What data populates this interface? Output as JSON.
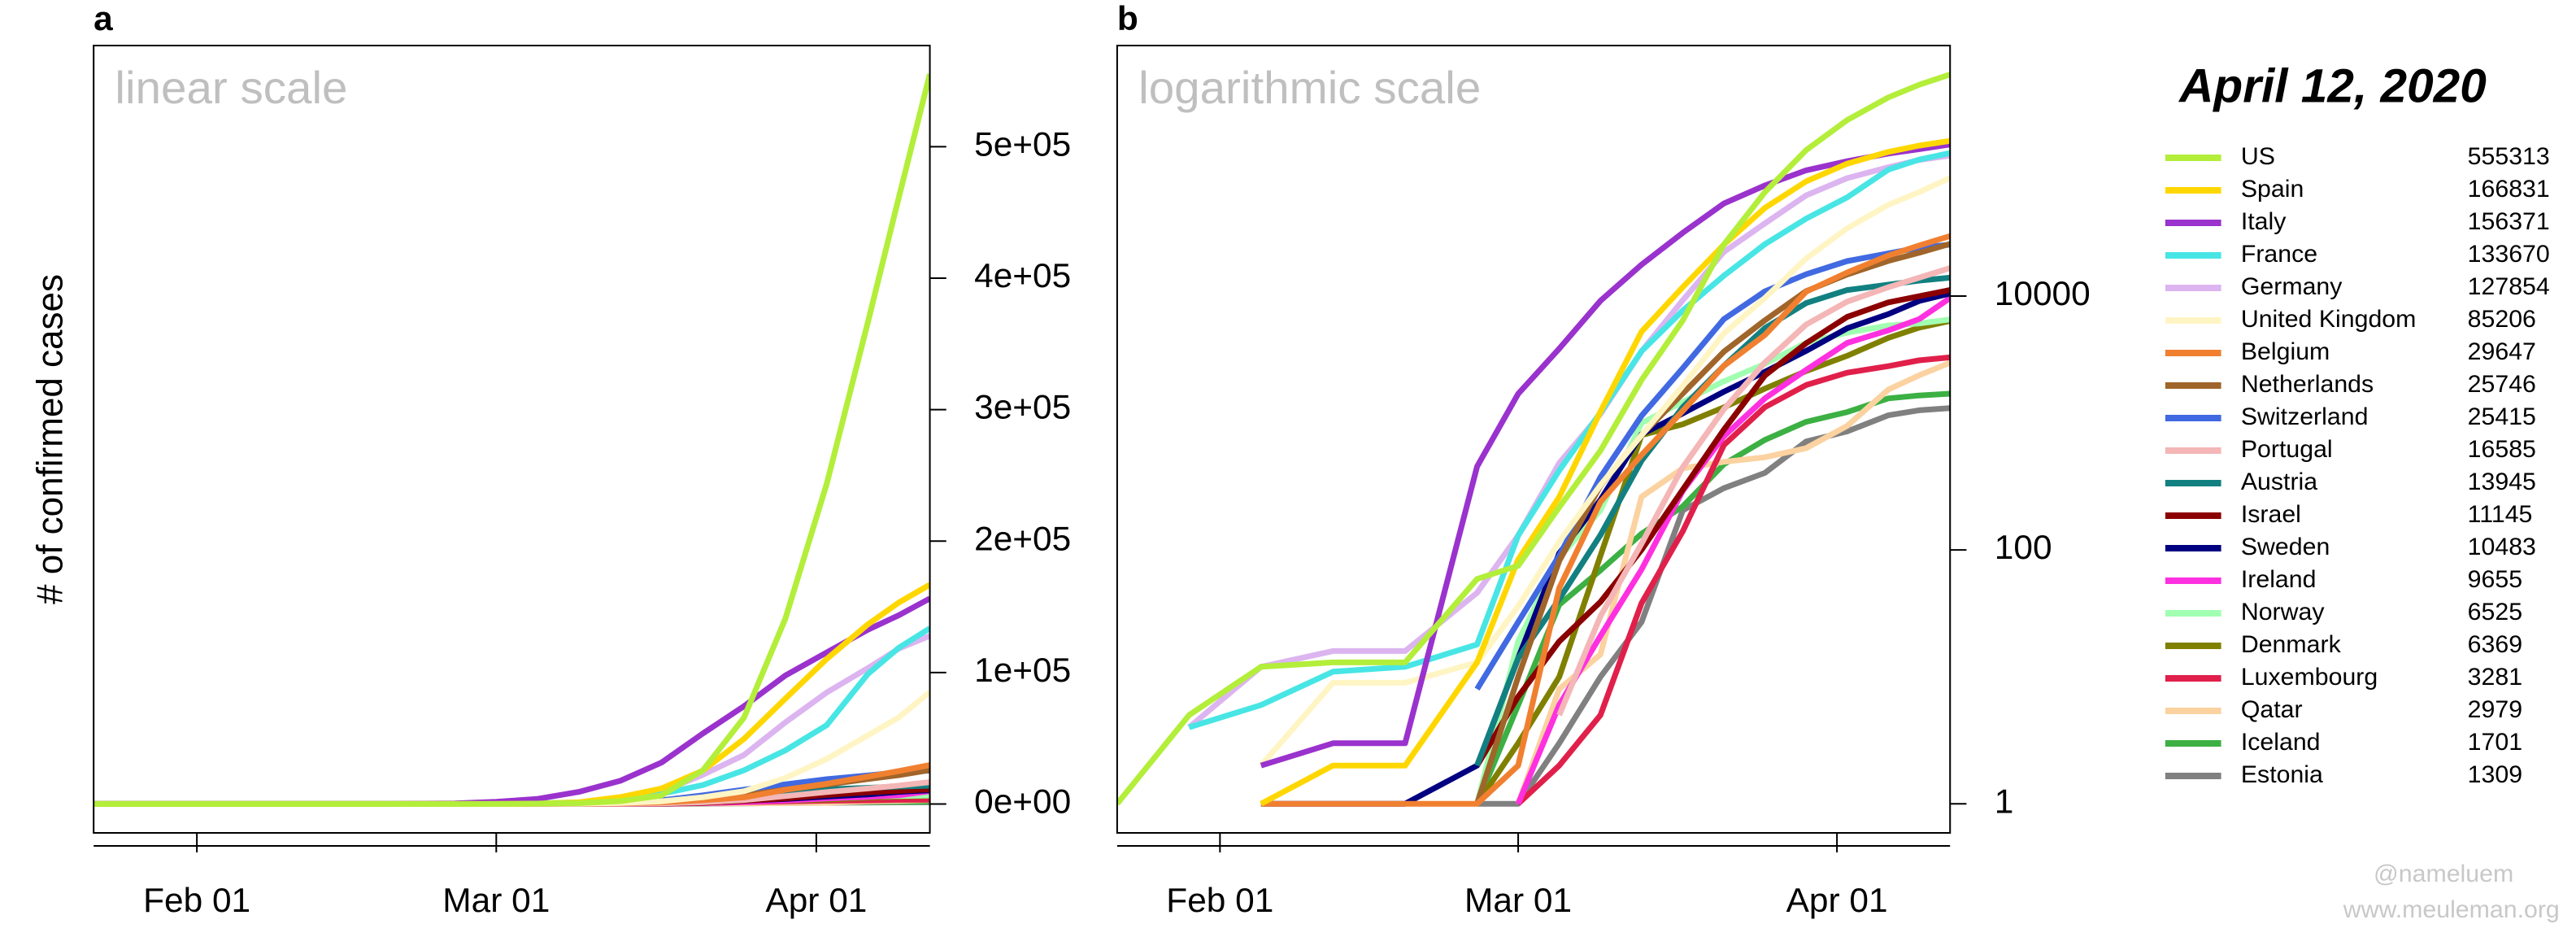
{
  "chart_data": {
    "type": "line",
    "title": "April 12, 2020",
    "ylabel": "# of confirmed cases",
    "x": [
      "Jan 22",
      "Jan 29",
      "Feb 05",
      "Feb 12",
      "Feb 19",
      "Feb 26",
      "Mar 01",
      "Mar 05",
      "Mar 09",
      "Mar 13",
      "Mar 17",
      "Mar 21",
      "Mar 25",
      "Mar 29",
      "Apr 02",
      "Apr 06",
      "Apr 09",
      "Apr 12"
    ],
    "xlim": [
      "Jan 22",
      "Apr 12"
    ],
    "xticks": [
      "Feb 01",
      "Mar 01",
      "Apr 01"
    ],
    "panels": [
      {
        "label": "a",
        "note": "linear scale",
        "yscale": "linear",
        "ylim": [
          -22000,
          577000
        ],
        "yticks": [
          {
            "value": 0,
            "label": "0e+00"
          },
          {
            "value": 100000,
            "label": "1e+05"
          },
          {
            "value": 200000,
            "label": "2e+05"
          },
          {
            "value": 300000,
            "label": "3e+05"
          },
          {
            "value": 400000,
            "label": "4e+05"
          },
          {
            "value": 500000,
            "label": "5e+05"
          }
        ]
      },
      {
        "label": "b",
        "note": "logarithmic scale",
        "yscale": "log",
        "ylim": [
          0.59,
          940000
        ],
        "yticks": [
          1,
          100,
          10000
        ]
      }
    ],
    "series": [
      {
        "name": "US",
        "color": "#b3ee3a",
        "values": [
          1,
          5,
          12,
          13,
          13,
          59,
          75,
          217,
          605,
          2179,
          6421,
          25489,
          65778,
          140886,
          243453,
          366667,
          461437,
          555313
        ]
      },
      {
        "name": "Spain",
        "color": "#ffd700",
        "values": [
          0,
          0,
          1,
          2,
          2,
          13,
          84,
          261,
          1231,
          5232,
          11748,
          25374,
          49515,
          80110,
          110238,
          136675,
          153222,
          166831
        ]
      },
      {
        "name": "Italy",
        "color": "#9a32cd",
        "values": [
          0,
          0,
          2,
          3,
          3,
          453,
          1694,
          3858,
          9172,
          17660,
          31506,
          53578,
          74386,
          97689,
          115242,
          132547,
          143626,
          156371
        ]
      },
      {
        "name": "France",
        "color": "#48e5e5",
        "values": [
          0,
          4,
          6,
          11,
          12,
          18,
          130,
          423,
          1209,
          3672,
          7683,
          14431,
          25600,
          40708,
          59929,
          98963,
          118783,
          133670
        ]
      },
      {
        "name": "Germany",
        "color": "#dcb4f0",
        "values": [
          0,
          4,
          12,
          16,
          16,
          46,
          130,
          482,
          1176,
          3675,
          9257,
          22213,
          37323,
          62095,
          84794,
          103374,
          118181,
          127854
        ]
      },
      {
        "name": "United Kingdom",
        "color": "#fff5c4",
        "values": [
          0,
          0,
          2,
          9,
          9,
          13,
          36,
          116,
          324,
          801,
          1960,
          5067,
          9640,
          19780,
          34173,
          52279,
          65872,
          85206
        ]
      },
      {
        "name": "Belgium",
        "color": "#f08030",
        "values": [
          0,
          0,
          1,
          1,
          1,
          1,
          2,
          50,
          239,
          559,
          1243,
          2815,
          4937,
          10836,
          15348,
          20814,
          24983,
          29647
        ]
      },
      {
        "name": "Netherlands",
        "color": "#a0652a",
        "values": [
          0,
          0,
          0,
          0,
          0,
          1,
          10,
          82,
          321,
          804,
          1708,
          3640,
          6438,
          10930,
          14788,
          18926,
          21903,
          25746
        ]
      },
      {
        "name": "Switzerland",
        "color": "#4169e1",
        "values": [
          0,
          0,
          0,
          0,
          0,
          8,
          27,
          90,
          374,
          1139,
          2700,
          6575,
          10897,
          14829,
          18827,
          21657,
          24051,
          25415
        ]
      },
      {
        "name": "Portugal",
        "color": "#f4b6b6",
        "values": [
          0,
          0,
          0,
          0,
          0,
          0,
          0,
          5,
          30,
          112,
          448,
          1280,
          2995,
          5962,
          9034,
          11730,
          13956,
          16585
        ]
      },
      {
        "name": "Austria",
        "color": "#128080",
        "values": [
          0,
          0,
          0,
          0,
          0,
          2,
          14,
          41,
          131,
          504,
          1332,
          2814,
          5588,
          8813,
          11129,
          12297,
          13244,
          13945
        ]
      },
      {
        "name": "Israel",
        "color": "#8b0000",
        "values": [
          0,
          0,
          0,
          0,
          0,
          2,
          7,
          19,
          39,
          100,
          298,
          883,
          2369,
          4247,
          6857,
          8904,
          9968,
          11145
        ]
      },
      {
        "name": "Sweden",
        "color": "#000080",
        "values": [
          0,
          0,
          1,
          1,
          1,
          2,
          14,
          94,
          248,
          814,
          1190,
          1763,
          2526,
          3700,
          5568,
          7206,
          9141,
          10483
        ]
      },
      {
        "name": "Ireland",
        "color": "#ff30e0",
        "values": [
          0,
          0,
          0,
          0,
          0,
          0,
          1,
          6,
          21,
          70,
          292,
          785,
          1564,
          2615,
          4273,
          5364,
          6574,
          9655
        ]
      },
      {
        "name": "Norway",
        "color": "#a0ffb0",
        "values": [
          0,
          0,
          0,
          0,
          0,
          1,
          19,
          87,
          205,
          996,
          1463,
          2132,
          2916,
          4284,
          5147,
          5865,
          6086,
          6525
        ]
      },
      {
        "name": "Denmark",
        "color": "#808000",
        "values": [
          0,
          0,
          0,
          0,
          0,
          1,
          3,
          10,
          90,
          801,
          977,
          1326,
          1862,
          2564,
          3386,
          4681,
          5635,
          6369
        ]
      },
      {
        "name": "Luxembourg",
        "color": "#e0204a",
        "values": [
          0,
          0,
          0,
          0,
          0,
          0,
          1,
          2,
          5,
          38,
          140,
          670,
          1333,
          1988,
          2487,
          2804,
          3115,
          3281
        ]
      },
      {
        "name": "Qatar",
        "color": "#fbd2a0",
        "values": [
          0,
          0,
          0,
          0,
          0,
          0,
          1,
          8,
          15,
          262,
          439,
          494,
          537,
          634,
          949,
          1832,
          2376,
          2979
        ]
      },
      {
        "name": "Iceland",
        "color": "#3cb043",
        "values": [
          0,
          0,
          0,
          0,
          0,
          1,
          6,
          37,
          69,
          134,
          220,
          473,
          737,
          1020,
          1220,
          1562,
          1648,
          1701
        ]
      },
      {
        "name": "Estonia",
        "color": "#808080",
        "values": [
          0,
          0,
          0,
          0,
          0,
          1,
          1,
          3,
          10,
          27,
          205,
          306,
          404,
          715,
          858,
          1149,
          1258,
          1309
        ]
      }
    ]
  },
  "credits": [
    "@nameluem",
    "www.meuleman.org"
  ]
}
